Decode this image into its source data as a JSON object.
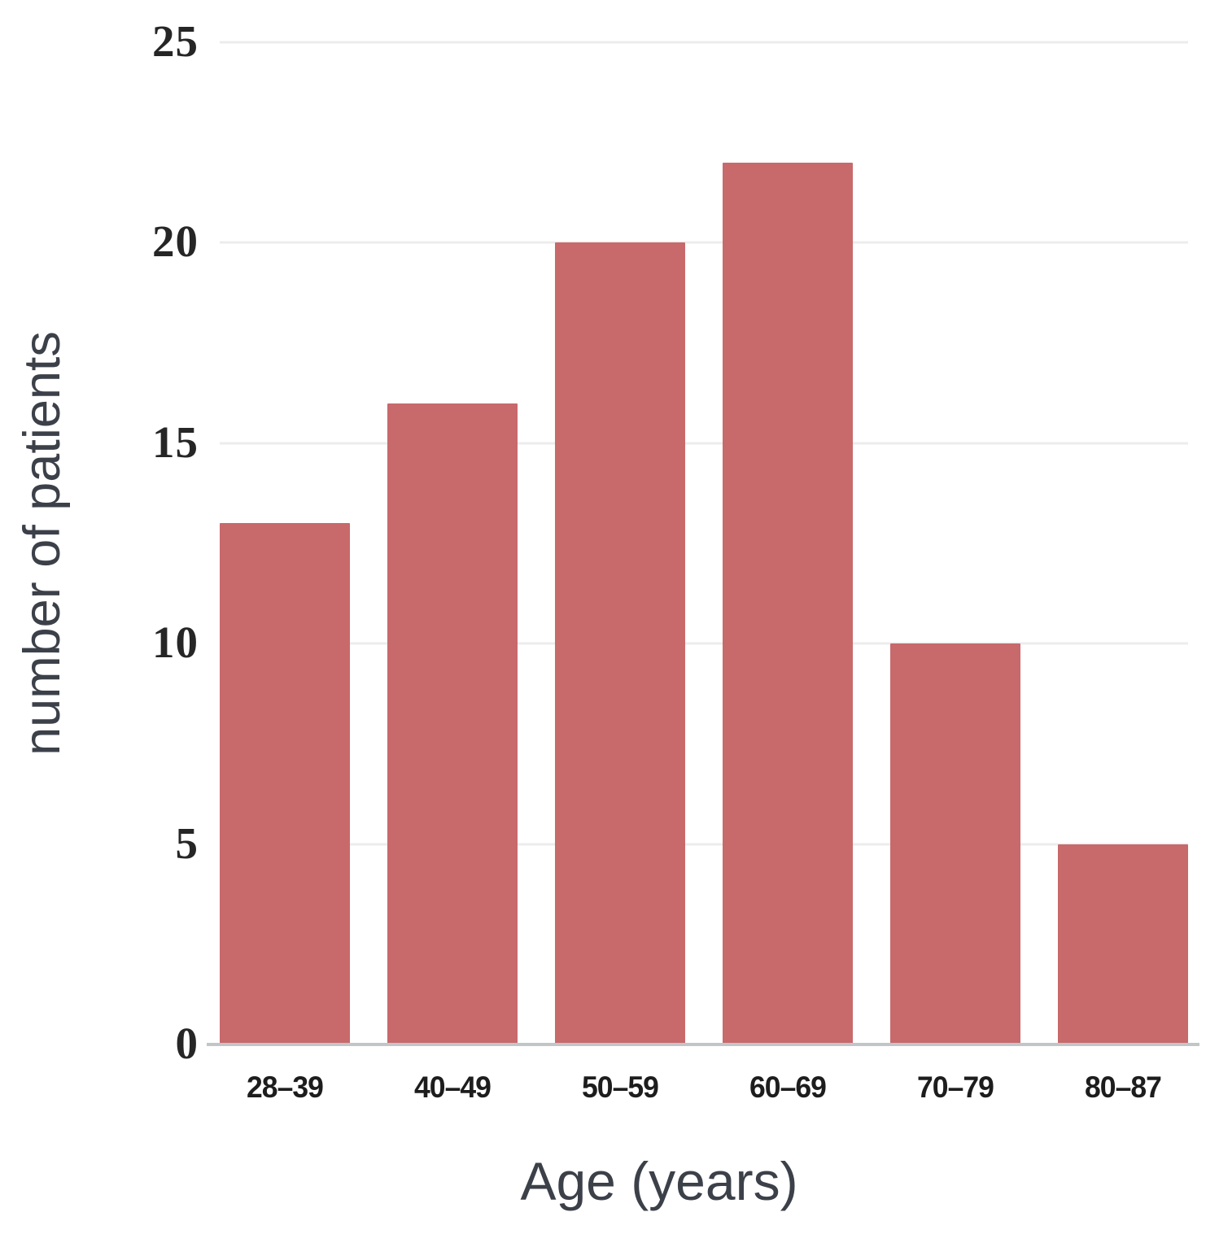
{
  "figure": {
    "background": "#ffffff"
  },
  "chart_data": {
    "type": "bar",
    "title": "",
    "xlabel": "Age (years)",
    "ylabel": "number of patients",
    "categories": [
      "28–39",
      "40–49",
      "50–59",
      "60–69",
      "70–79",
      "80–87"
    ],
    "values": [
      13,
      16,
      20,
      22,
      10,
      5
    ],
    "ylim": [
      0,
      25
    ],
    "yticks": [
      0,
      5,
      10,
      15,
      20,
      25
    ],
    "grid": "horizontal-only",
    "legend": "none",
    "bar_color": "#c8696c",
    "gridline_color": "#ececec",
    "baseline_color": "#c2c6c8",
    "tick_label_color": "#262626",
    "axis_title_color": "#3c4049"
  }
}
